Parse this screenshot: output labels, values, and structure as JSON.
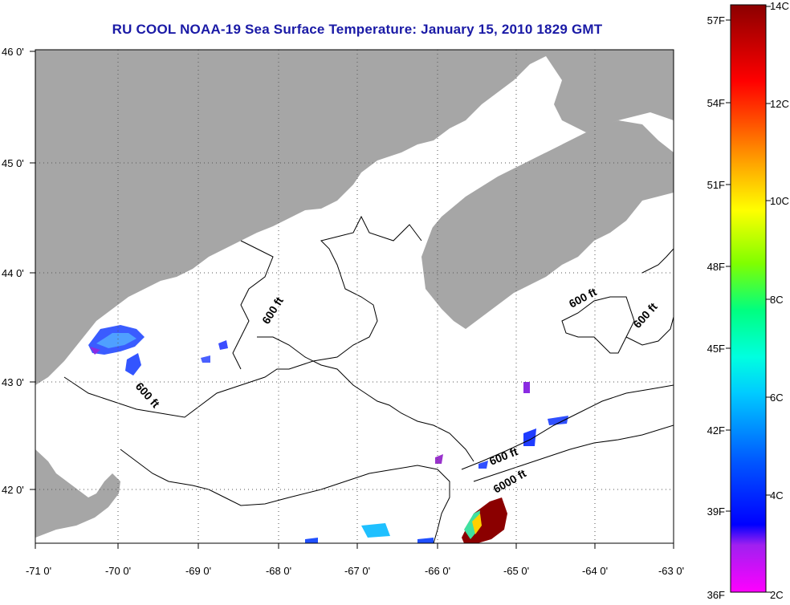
{
  "title": "RU COOL  NOAA-19  Sea Surface Temperature:  January 15, 2010 1829 GMT",
  "map": {
    "lon_labels": [
      "-71 0'",
      "-70 0'",
      "-69 0'",
      "-68 0'",
      "-67 0'",
      "-66 0'",
      "-65 0'",
      "-64 0'",
      "-63 0'"
    ],
    "lat_labels": [
      "46 0'",
      "45 0'",
      "44 0'",
      "43 0'",
      "42 0'"
    ],
    "contour_labels": [
      "600 ft",
      "600 ft",
      "600 ft",
      "600 ft",
      "600 ft",
      "6000 ft"
    ],
    "colors": {
      "land": "#a6a6a6",
      "water": "#ffffff",
      "grid": "#555555"
    }
  },
  "colorbar": {
    "fahrenheit_labels": [
      "57F",
      "54F",
      "51F",
      "48F",
      "45F",
      "42F",
      "39F",
      "36F"
    ],
    "celsius_labels": [
      "14C",
      "12C",
      "10C",
      "8C",
      "6C",
      "4C",
      "2C"
    ]
  }
}
